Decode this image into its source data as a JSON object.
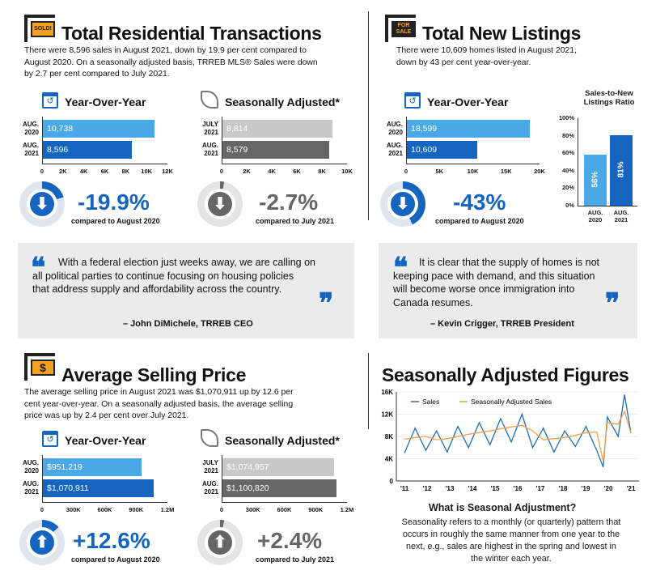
{
  "trt": {
    "title": "Total Residential Transactions",
    "sign": "SOLD!",
    "body1": "There were 8,596 sales in August 2021, down by 19.9 per cent compared to",
    "body2": "August 2020. On a seasonally adjusted basis, TRREB MLS® Sales were down",
    "body3": "by 2.7 per cent compared to July 2021.",
    "yoy": "Year-Over-Year",
    "sa": "Seasonally Adjusted*",
    "yoy_bars": [
      {
        "l1": "AUG.",
        "l2": "2020",
        "value": "10,738",
        "num": 10738
      },
      {
        "l1": "AUG.",
        "l2": "2021",
        "value": "8,596",
        "num": 8596
      }
    ],
    "sa_bars": [
      {
        "l1": "JULY",
        "l2": "2021",
        "value": "8,814",
        "num": 8814
      },
      {
        "l1": "AUG.",
        "l2": "2021",
        "value": "8,579",
        "num": 8579
      }
    ],
    "ticks1": [
      "0",
      "2K",
      "4K",
      "6K",
      "8K",
      "10K",
      "12K"
    ],
    "ticks2": [
      "0",
      "2K",
      "4K",
      "6K",
      "8K",
      "10K"
    ],
    "pct1": "-19.9%",
    "cmp1": "compared to August 2020",
    "pct2": "-2.7%",
    "cmp2": "compared to July 2021"
  },
  "tnl": {
    "title": "Total New Listings",
    "sign1": "FOR",
    "sign2": "SALE",
    "body1": "There were 10,609 homes listed in August 2021,",
    "body2": "down by 43 per cent year-over-year.",
    "yoy": "Year-Over-Year",
    "yoy_bars": [
      {
        "l1": "AUG.",
        "l2": "2020",
        "value": "18,599",
        "num": 18599
      },
      {
        "l1": "AUG.",
        "l2": "2021",
        "value": "10,609",
        "num": 10609
      }
    ],
    "ticks": [
      "0",
      "5K",
      "10K",
      "15K",
      "20K"
    ],
    "pct": "-43%",
    "cmp": "compared to August 2020",
    "ratio_title1": "Sales-to-New",
    "ratio_title2": "Listings Ratio",
    "ratio_ticks": [
      "100%",
      "80%",
      "60%",
      "40%",
      "20%",
      "0%"
    ],
    "ratio": [
      {
        "l1": "AUG.",
        "l2": "2020",
        "value": "58%",
        "num": 58
      },
      {
        "l1": "AUG.",
        "l2": "2021",
        "value": "81%",
        "num": 81
      }
    ]
  },
  "quote1": {
    "line1": "With a federal election just weeks away, we are calling on",
    "line2": "all political parties to continue focusing on housing policies",
    "line3": "that address supply and affordability across the country.",
    "by": "– John DiMichele, TRREB CEO"
  },
  "quote2": {
    "line1": "It is clear that the supply of homes is not",
    "line2": "keeping pace with demand, and this situation",
    "line3": "will become worse once immigration into",
    "line4": "Canada resumes.",
    "by": "– Kevin Crigger, TRREB President"
  },
  "asp": {
    "title": "Average Selling Price",
    "body1": "The average selling price in August 2021 was $1,070,911 up by 12.6 per",
    "body2": "cent year-over-year. On a seasonally adjusted basis, the average selling",
    "body3": "price was up by 2.4 per cent over July 2021.",
    "yoy": "Year-Over-Year",
    "sa": "Seasonally Adjusted*",
    "yoy_bars": [
      {
        "l1": "AUG.",
        "l2": "2020",
        "value": "$951,219",
        "num": 951219
      },
      {
        "l1": "AUG.",
        "l2": "2021",
        "value": "$1,070,911",
        "num": 1070911
      }
    ],
    "sa_bars": [
      {
        "l1": "JULY",
        "l2": "2021",
        "value": "$1,074,957",
        "num": 1074957
      },
      {
        "l1": "AUG.",
        "l2": "2021",
        "value": "$1,100,820",
        "num": 1100820
      }
    ],
    "ticks": [
      "0",
      "300K",
      "600K",
      "900K",
      "1.2M"
    ],
    "pct1": "+12.6%",
    "cmp1": "compared to August 2020",
    "pct2": "+2.4%",
    "cmp2": "compared to July 2021"
  },
  "saf": {
    "title": "Seasonally Adjusted Figures",
    "legend_sales": "Sales",
    "legend_sa": "Seasonally Adjusted Sales",
    "yticks": [
      "16K",
      "12K",
      "8K",
      "4K",
      "0"
    ],
    "xticks": [
      "'11",
      "'12",
      "'13",
      "'14",
      "'15",
      "'16",
      "'17",
      "'18",
      "'19",
      "'20",
      "'21"
    ],
    "q_title": "What is Seasonal Adjustment?",
    "q1": "Seasonality refers to a monthly (or quarterly) pattern that",
    "q2": "occurs in roughly the same manner from one year to the",
    "q3": "next, e.g., sales are highest in the spring and lowest in",
    "q4": "the winter each year."
  },
  "chart_data": {
    "type": "line",
    "ylim": [
      0,
      16000
    ],
    "x": [
      "2011",
      "2011.5",
      "2012",
      "2012.5",
      "2013",
      "2013.5",
      "2014",
      "2014.5",
      "2015",
      "2015.5",
      "2016",
      "2016.5",
      "2017",
      "2017.5",
      "2018",
      "2018.5",
      "2019",
      "2019.5",
      "2020",
      "2020.3",
      "2020.5",
      "2021",
      "2021.3",
      "2021.6"
    ],
    "series": [
      {
        "name": "Sales",
        "values": [
          5000,
          9500,
          5500,
          9000,
          5200,
          9800,
          6000,
          10500,
          6500,
          11200,
          7000,
          12000,
          6000,
          9500,
          5200,
          9000,
          6200,
          9800,
          5500,
          2500,
          11500,
          8000,
          15500,
          8600
        ]
      },
      {
        "name": "Seasonally Adjusted Sales",
        "values": [
          7500,
          7800,
          8000,
          7400,
          7600,
          8000,
          8400,
          8700,
          9000,
          9400,
          9700,
          10000,
          9000,
          7400,
          7600,
          7800,
          8200,
          8700,
          8800,
          3500,
          10500,
          10200,
          12500,
          8600
        ]
      }
    ]
  },
  "colors": {
    "blue": "#1565c0",
    "light_blue": "#4aa8e8",
    "gray": "#666666",
    "light_gray": "#c8c8c8",
    "orange": "#f5a04a",
    "quote_bg": "#ebebeb"
  }
}
